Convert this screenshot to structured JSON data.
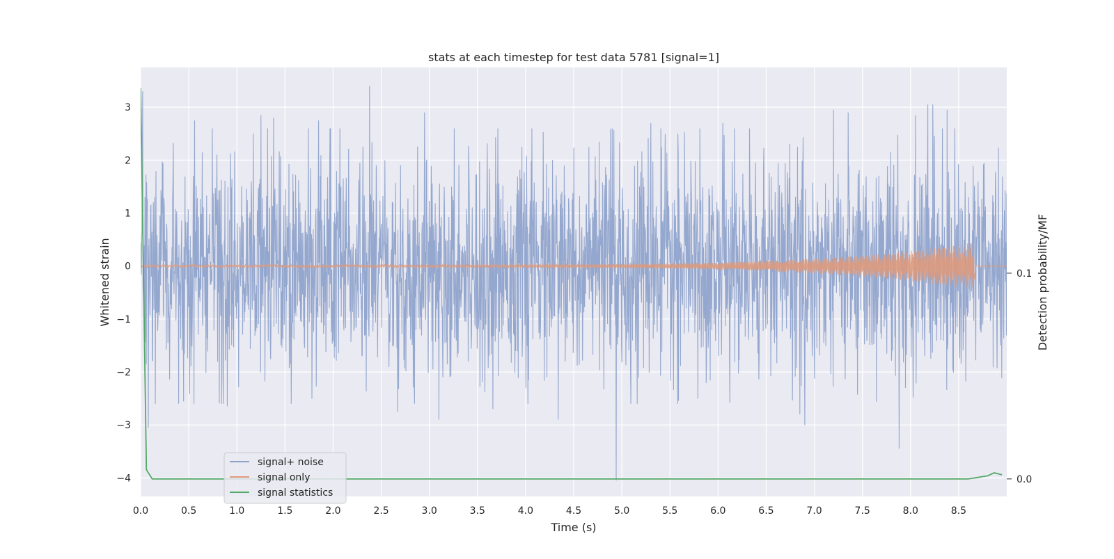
{
  "chart_data": {
    "type": "line",
    "title": "stats at each timestep for test data 5781 [signal=1]",
    "xlabel": "Time (s)",
    "ylabel": "Whitened strain",
    "y2label": "Detection probability/MF",
    "xlim": [
      0.0,
      9.0
    ],
    "ylim": [
      -4.35,
      3.75
    ],
    "y2lim": [
      -0.0085,
      0.2
    ],
    "x_ticks": [
      "0.0",
      "0.5",
      "1.0",
      "1.5",
      "2.0",
      "2.5",
      "3.0",
      "3.5",
      "4.0",
      "4.5",
      "5.0",
      "5.5",
      "6.0",
      "6.5",
      "7.0",
      "7.5",
      "8.0",
      "8.5"
    ],
    "x_tick_values": [
      0.0,
      0.5,
      1.0,
      1.5,
      2.0,
      2.5,
      3.0,
      3.5,
      4.0,
      4.5,
      5.0,
      5.5,
      6.0,
      6.5,
      7.0,
      7.5,
      8.0,
      8.5
    ],
    "y_ticks": [
      "3",
      "2",
      "1",
      "0",
      "−1",
      "−2",
      "−3",
      "−4"
    ],
    "y_tick_values": [
      3,
      2,
      1,
      0,
      -1,
      -2,
      -3,
      -4
    ],
    "y2_ticks": [
      "0.1",
      "0.0"
    ],
    "y2_tick_values": [
      0.1,
      0.0
    ],
    "grid": true,
    "legend_position": "lower-left",
    "series": [
      {
        "name": "signal+ noise",
        "color": "#8fa3cb",
        "axis": "left",
        "description_samples": {
          "noise_sigma": 1.0,
          "spikes": [
            {
              "x": 0.02,
              "y": 3.3
            },
            {
              "x": 0.06,
              "y": -1.85
            },
            {
              "x": 0.08,
              "y": -3.05
            },
            {
              "x": 0.56,
              "y": 2.75
            },
            {
              "x": 0.86,
              "y": -2.6
            },
            {
              "x": 0.9,
              "y": -2.65
            },
            {
              "x": 1.25,
              "y": 2.85
            },
            {
              "x": 1.38,
              "y": 2.8
            },
            {
              "x": 1.85,
              "y": 2.75
            },
            {
              "x": 2.38,
              "y": 3.4
            },
            {
              "x": 2.67,
              "y": -2.75
            },
            {
              "x": 2.95,
              "y": 2.9
            },
            {
              "x": 3.1,
              "y": -2.9
            },
            {
              "x": 3.66,
              "y": -2.7
            },
            {
              "x": 4.34,
              "y": -2.9
            },
            {
              "x": 4.94,
              "y": -4.05
            },
            {
              "x": 5.3,
              "y": 2.7
            },
            {
              "x": 6.05,
              "y": 2.7
            },
            {
              "x": 6.85,
              "y": -2.8
            },
            {
              "x": 6.9,
              "y": -3.0
            },
            {
              "x": 7.2,
              "y": 2.95
            },
            {
              "x": 7.35,
              "y": 2.9
            },
            {
              "x": 7.88,
              "y": -3.45
            },
            {
              "x": 8.05,
              "y": 2.85
            },
            {
              "x": 8.18,
              "y": 3.05
            },
            {
              "x": 8.23,
              "y": 3.05
            },
            {
              "x": 8.38,
              "y": 2.95
            }
          ]
        }
      },
      {
        "name": "signal only",
        "color": "#dd9a7d",
        "axis": "left",
        "chirp": {
          "start_x": 0.0,
          "end_x": 8.66,
          "start_amplitude": 0.02,
          "peak_amplitude": 0.45
        }
      },
      {
        "name": "signal statistics",
        "color": "#55a868",
        "axis": "right",
        "x": [
          0.0,
          0.06,
          0.12,
          0.5,
          1.0,
          2.0,
          3.0,
          4.0,
          5.0,
          6.0,
          7.0,
          8.0,
          8.6,
          8.8,
          8.87,
          8.95
        ],
        "y": [
          0.19,
          0.0045,
          0.0,
          0.0,
          0.0,
          0.0,
          0.0,
          0.0,
          0.0,
          0.0,
          0.0,
          0.0,
          0.0,
          0.0015,
          0.003,
          0.002
        ]
      }
    ]
  }
}
